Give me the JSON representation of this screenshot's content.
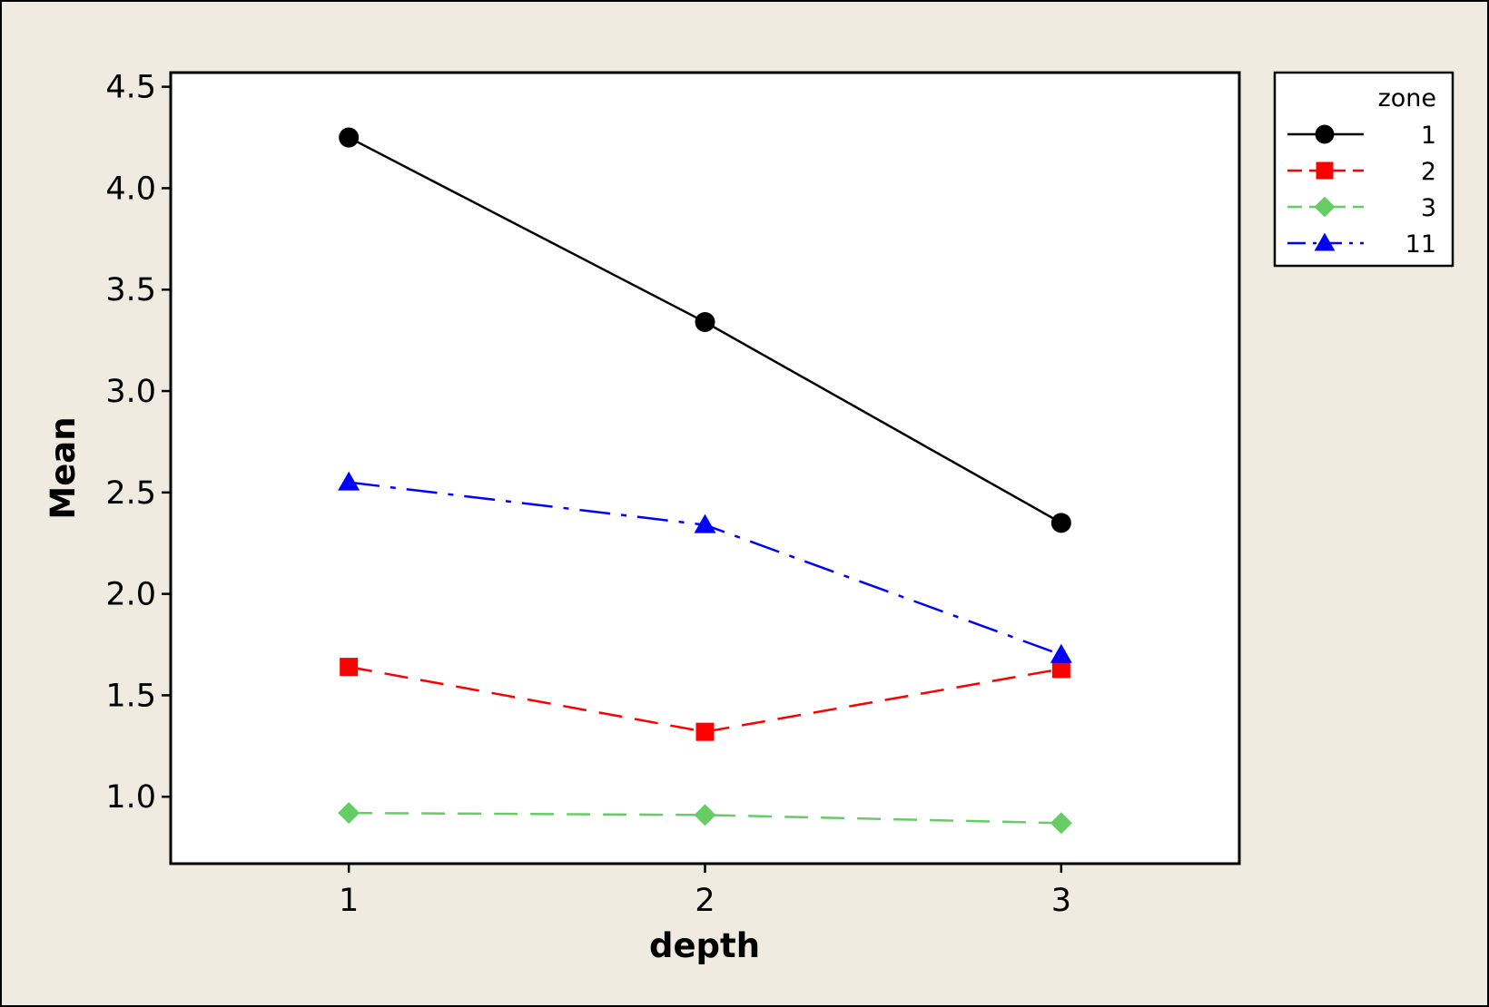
{
  "chart_data": {
    "type": "line",
    "xlabel": "depth",
    "ylabel": "Mean",
    "categories": [
      1,
      2,
      3
    ],
    "xlim": [
      0.5,
      3.5
    ],
    "ylim": [
      0.67,
      4.57
    ],
    "yticks": [
      1.0,
      1.5,
      2.0,
      2.5,
      3.0,
      3.5,
      4.0,
      4.5
    ],
    "ytick_labels": [
      "1.0",
      "1.5",
      "2.0",
      "2.5",
      "3.0",
      "3.5",
      "4.0",
      "4.5"
    ],
    "xtick_labels": [
      "1",
      "2",
      "3"
    ],
    "legend": {
      "title": "zone",
      "placement": "right, outside plot area"
    },
    "grid": false,
    "series": [
      {
        "name": "1",
        "values": [
          4.25,
          3.34,
          2.35
        ],
        "color": "#000000",
        "marker": "circle",
        "line": "solid"
      },
      {
        "name": "2",
        "values": [
          1.64,
          1.32,
          1.63
        ],
        "color": "#ff0000",
        "marker": "square",
        "line": "dashed"
      },
      {
        "name": "3",
        "values": [
          0.92,
          0.91,
          0.87
        ],
        "color": "#66cc66",
        "marker": "diamond",
        "line": "dashed"
      },
      {
        "name": "11",
        "values": [
          2.55,
          2.34,
          1.7
        ],
        "color": "#0000ff",
        "marker": "triangle",
        "line": "dash-dot"
      }
    ]
  }
}
